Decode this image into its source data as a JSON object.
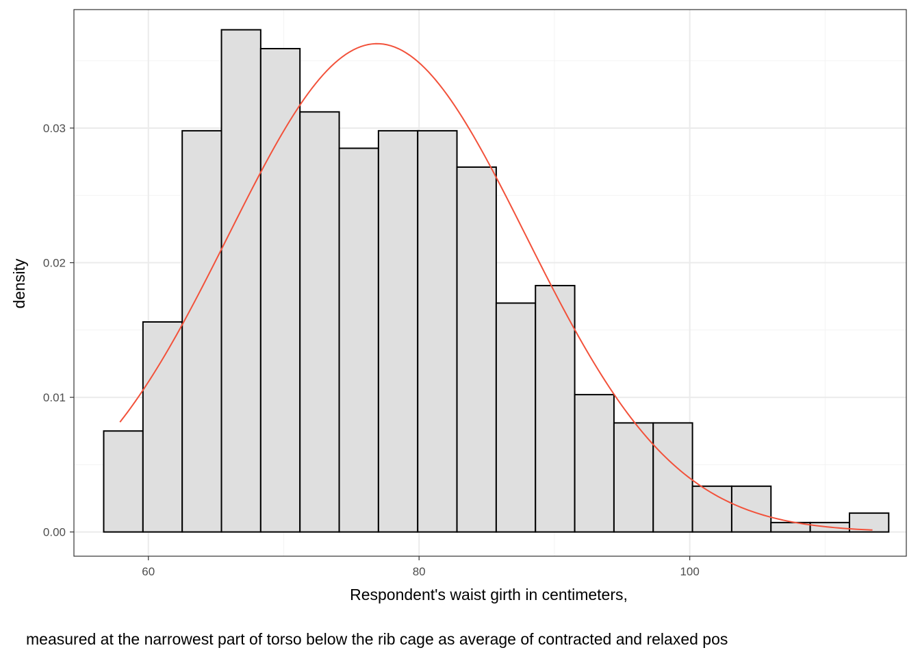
{
  "chart_data": {
    "type": "bar",
    "subtype": "histogram-with-normal-curve",
    "xlabel": "Respondent's waist girth in centimeters,",
    "xlabel_line2": "measured at the narrowest part of torso below the rib cage as average of contracted and relaxed pos",
    "ylabel": "density",
    "xlim": [
      54.5,
      116.0
    ],
    "ylim": [
      -0.0018,
      0.0388
    ],
    "x_ticks": [
      {
        "value": 60,
        "label": "60"
      },
      {
        "value": 80,
        "label": "80"
      },
      {
        "value": 100,
        "label": "100"
      }
    ],
    "y_ticks": [
      {
        "value": 0.0,
        "label": "0.00"
      },
      {
        "value": 0.01,
        "label": "0.01"
      },
      {
        "value": 0.02,
        "label": "0.02"
      },
      {
        "value": 0.03,
        "label": "0.03"
      }
    ],
    "x_minor_ticks": [
      70,
      90,
      110
    ],
    "y_minor_ticks": [
      0.005,
      0.015,
      0.025,
      0.035
    ],
    "grid": true,
    "bins": [
      {
        "x0": 56.7,
        "x1": 59.6,
        "density": 0.0075
      },
      {
        "x0": 59.6,
        "x1": 62.5,
        "density": 0.0156
      },
      {
        "x0": 62.5,
        "x1": 65.4,
        "density": 0.0298
      },
      {
        "x0": 65.4,
        "x1": 68.3,
        "density": 0.0373
      },
      {
        "x0": 68.3,
        "x1": 71.2,
        "density": 0.0359
      },
      {
        "x0": 71.2,
        "x1": 74.1,
        "density": 0.0312
      },
      {
        "x0": 74.1,
        "x1": 77.0,
        "density": 0.0285
      },
      {
        "x0": 77.0,
        "x1": 79.9,
        "density": 0.0298
      },
      {
        "x0": 79.9,
        "x1": 82.8,
        "density": 0.0298
      },
      {
        "x0": 82.8,
        "x1": 85.7,
        "density": 0.0271
      },
      {
        "x0": 85.7,
        "x1": 88.6,
        "density": 0.017
      },
      {
        "x0": 88.6,
        "x1": 91.5,
        "density": 0.0183
      },
      {
        "x0": 91.5,
        "x1": 94.4,
        "density": 0.0102
      },
      {
        "x0": 94.4,
        "x1": 97.3,
        "density": 0.0081
      },
      {
        "x0": 97.3,
        "x1": 100.2,
        "density": 0.0081
      },
      {
        "x0": 100.2,
        "x1": 103.1,
        "density": 0.0034
      },
      {
        "x0": 103.1,
        "x1": 106.0,
        "density": 0.0034
      },
      {
        "x0": 106.0,
        "x1": 108.9,
        "density": 0.0007
      },
      {
        "x0": 108.9,
        "x1": 111.8,
        "density": 0.0007
      },
      {
        "x0": 111.8,
        "x1": 114.7,
        "density": 0.0014
      }
    ],
    "normal_curve": {
      "mean": 76.9,
      "sd": 11.0,
      "x_range": [
        57.9,
        113.5
      ]
    },
    "colors": {
      "bar_fill": "#dfdfdf",
      "bar_stroke": "#000000",
      "curve": "#f2513a",
      "grid_major": "#ebebeb",
      "grid_minor": "#f3f3f3",
      "panel_border": "#333333",
      "tick_label": "#4d4d4d",
      "axis_title": "#000000",
      "background": "#ffffff"
    }
  }
}
